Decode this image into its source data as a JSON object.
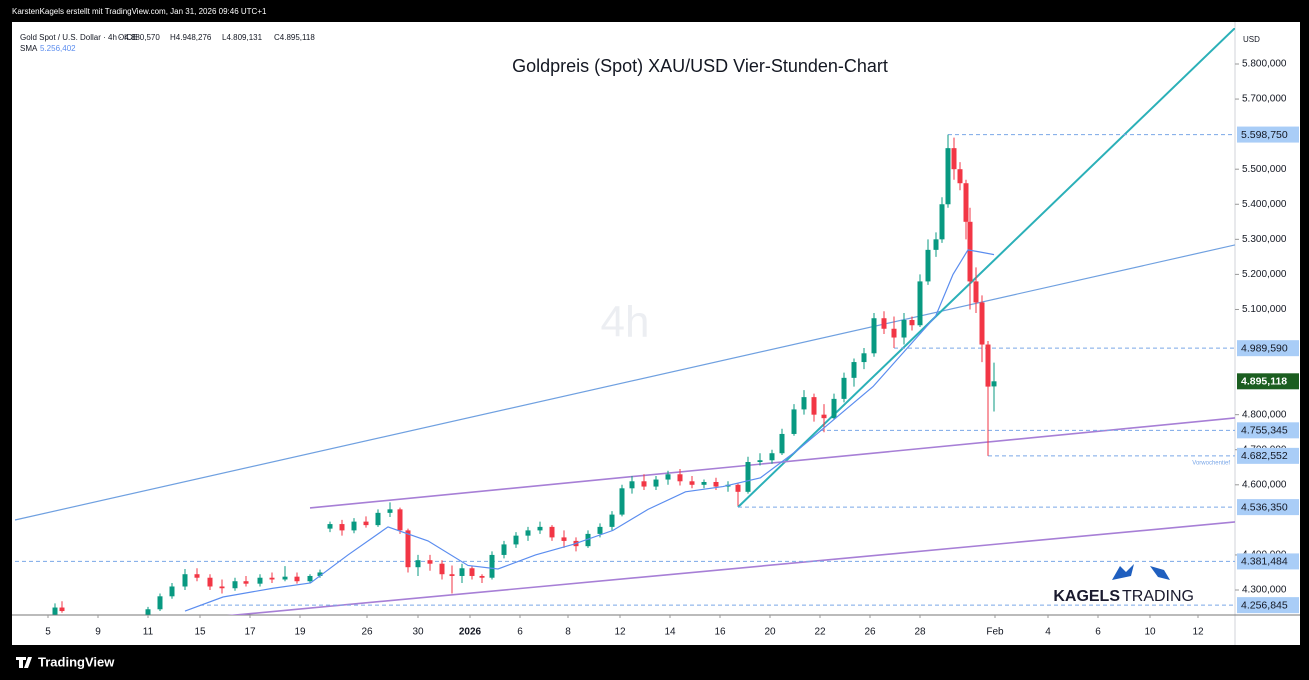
{
  "chart_data": {
    "type": "candlestick",
    "credit": "KarstenKagels erstellt mit TradingView.com, Jan 31, 2026 09:46 UTC+1",
    "symbol": "Gold Spot / U.S. Dollar · 4h · ICE",
    "ohlc_labels": [
      "O4.880,570",
      "H4.948,276",
      "L4.809,131",
      "C4.895,118"
    ],
    "title": "Goldpreis (Spot) XAU/USD Vier-Stunden-Chart",
    "watermark": "4h",
    "y_axis_label": "USD",
    "brand": [
      "KAGELS",
      "TRADING"
    ],
    "footer": "TradingView",
    "up_color": "#089981",
    "down_color": "#f23645",
    "grid": false,
    "x": [
      0.28,
      0.56,
      4.0,
      4.48,
      4.96,
      5.48,
      5.96,
      6.48,
      6.96,
      7.48,
      7.92,
      8.48,
      8.96,
      9.48,
      9.96,
      10.48,
      10.88,
      11.28,
      11.76,
      12.24,
      12.72,
      13.2,
      13.68,
      14.08,
      14.4,
      14.8,
      15.28,
      15.76,
      16.16,
      16.56,
      16.96,
      17.36,
      17.76,
      18.24,
      18.72,
      19.2,
      19.68,
      20.16,
      20.64,
      21.12,
      21.6,
      22.08,
      22.56,
      22.96,
      23.36,
      23.84,
      24.32,
      24.8,
      25.28,
      25.76,
      26.24,
      26.72,
      27.2,
      27.6,
      28.0,
      28.48,
      28.96,
      29.36,
      29.84,
      30.24,
      30.64,
      31.04,
      31.44,
      31.84,
      32.24,
      32.64,
      33.04,
      33.44,
      33.84,
      34.24,
      34.56,
      34.88,
      35.2,
      35.52,
      35.76,
      36.0,
      36.24,
      36.48,
      36.72,
      36.88,
      37.12,
      37.36,
      37.6,
      37.84
    ],
    "open": [
      4230,
      4250,
      4230,
      4245,
      4282,
      4310,
      4345,
      4335,
      4310,
      4305,
      4325,
      4318,
      4335,
      4330,
      4338,
      4325,
      4340,
      4475,
      4488,
      4470,
      4495,
      4485,
      4520,
      4530,
      4470,
      4365,
      4385,
      4375,
      4345,
      4340,
      4362,
      4340,
      4335,
      4400,
      4430,
      4455,
      4470,
      4480,
      4450,
      4440,
      4425,
      4460,
      4480,
      4515,
      4590,
      4610,
      4595,
      4615,
      4630,
      4610,
      4600,
      4608,
      4595,
      4600,
      4580,
      4665,
      4670,
      4690,
      4745,
      4815,
      4850,
      4800,
      4790,
      4845,
      4905,
      4950,
      4975,
      5075,
      5045,
      5020,
      5070,
      5055,
      5180,
      5270,
      5300,
      5400,
      5560,
      5500,
      5460,
      5350,
      5180,
      5120,
      5000,
      4880.57
    ],
    "high": [
      4262,
      4268,
      4252,
      4290,
      4320,
      4360,
      4362,
      4345,
      4330,
      4335,
      4340,
      4345,
      4350,
      4368,
      4350,
      4345,
      4358,
      4495,
      4500,
      4505,
      4510,
      4530,
      4550,
      4535,
      4475,
      4400,
      4400,
      4385,
      4370,
      4375,
      4370,
      4345,
      4410,
      4440,
      4465,
      4480,
      4495,
      4485,
      4470,
      4450,
      4470,
      4490,
      4525,
      4600,
      4625,
      4630,
      4625,
      4640,
      4645,
      4625,
      4615,
      4620,
      4610,
      4605,
      4680,
      4690,
      4700,
      4760,
      4830,
      4870,
      4860,
      4830,
      4860,
      4920,
      4960,
      4990,
      5090,
      5095,
      5080,
      5090,
      5080,
      5200,
      5300,
      5320,
      5420,
      5598.75,
      5590,
      5520,
      5470,
      5390,
      5220,
      5140,
      5010,
      4948.276
    ],
    "low": [
      4225,
      4235,
      4228,
      4240,
      4275,
      4300,
      4325,
      4300,
      4290,
      4298,
      4310,
      4310,
      4320,
      4325,
      4318,
      4320,
      4335,
      4465,
      4455,
      4462,
      4478,
      4480,
      4508,
      4460,
      4350,
      4340,
      4355,
      4330,
      4290,
      4320,
      4330,
      4320,
      4330,
      4390,
      4420,
      4440,
      4460,
      4440,
      4420,
      4410,
      4420,
      4450,
      4470,
      4510,
      4575,
      4585,
      4585,
      4600,
      4598,
      4590,
      4590,
      4585,
      4580,
      4540,
      4575,
      4655,
      4660,
      4685,
      4740,
      4800,
      4780,
      4750,
      4785,
      4835,
      4880,
      4930,
      4965,
      5030,
      4990,
      5000,
      5040,
      5050,
      5170,
      5250,
      5290,
      5390,
      5470,
      5440,
      5300,
      5100,
      5090,
      4950,
      4682.552,
      4809.131
    ],
    "close": [
      4250,
      4240,
      4245,
      4282,
      4310,
      4345,
      4335,
      4310,
      4305,
      4325,
      4318,
      4335,
      4330,
      4338,
      4325,
      4340,
      4350,
      4488,
      4470,
      4495,
      4485,
      4520,
      4530,
      4470,
      4365,
      4385,
      4375,
      4345,
      4340,
      4362,
      4340,
      4335,
      4400,
      4430,
      4455,
      4470,
      4480,
      4450,
      4440,
      4425,
      4460,
      4480,
      4515,
      4590,
      4610,
      4595,
      4615,
      4630,
      4610,
      4600,
      4608,
      4595,
      4600,
      4580,
      4665,
      4670,
      4690,
      4745,
      4815,
      4850,
      4800,
      4790,
      4845,
      4905,
      4950,
      4975,
      5075,
      5045,
      5020,
      5070,
      5055,
      5180,
      5270,
      5300,
      5400,
      5560,
      5500,
      5460,
      5350,
      5180,
      5120,
      5000,
      4880,
      4895.118
    ],
    "sma": {
      "name": "SMA",
      "value_label": "5.256,402",
      "color": "#5b8def",
      "x": [
        5.48,
        7.0,
        9.0,
        10.5,
        12.0,
        13.6,
        15.2,
        16.8,
        18.0,
        19.5,
        21.0,
        22.6,
        24.0,
        25.5,
        27.0,
        28.5,
        30.0,
        31.5,
        33.0,
        34.5,
        35.5,
        36.2,
        36.8,
        37.2,
        37.84
      ],
      "values": [
        4240,
        4280,
        4305,
        4320,
        4400,
        4480,
        4440,
        4370,
        4360,
        4400,
        4430,
        4470,
        4530,
        4580,
        4595,
        4620,
        4700,
        4790,
        4880,
        5000,
        5080,
        5200,
        5270,
        5265,
        5256.402
      ]
    },
    "drawings": [
      {
        "color": "#6fa0e0",
        "width": 1.2,
        "x": [
          -1.32,
          47.48
        ],
        "y": [
          4499.6,
          5284
        ]
      },
      {
        "color": "#2bb0b8",
        "width": 2,
        "x": [
          27.6,
          47.48
        ],
        "y": [
          4536.35,
          5902.6
        ]
      },
      {
        "color": "#a77fd6",
        "width": 1.6,
        "x": [
          10.48,
          47.48
        ],
        "y": [
          4534,
          4790.6
        ]
      },
      {
        "color": "#a77fd6",
        "width": 1.6,
        "x": [
          5.28,
          47.48
        ],
        "y": [
          4214,
          4494
        ]
      }
    ],
    "levels": [
      {
        "value": 5598.75,
        "label": "5.598,750",
        "from": 36.0
      },
      {
        "value": 4989.59,
        "label": "4.989,590",
        "from": 33.84
      },
      {
        "value": 4755.345,
        "label": "4.755,345",
        "from": 30.88
      },
      {
        "value": 4682.552,
        "label": "4.682,552",
        "from": 37.6,
        "note": "Vorwochentief"
      },
      {
        "value": 4536.35,
        "label": "4.536,350",
        "from": 27.6
      },
      {
        "value": 4381.484,
        "label": "4.381,484",
        "from": -1.32
      },
      {
        "value": 4256.845,
        "label": "4.256,845",
        "from": 6.08
      }
    ],
    "current_price": {
      "value": 4895.118,
      "label": "4.895,118",
      "color": "#1b5e20"
    },
    "xlim": [
      -1.32,
      47.48
    ],
    "ylim": [
      4228.7,
      5902.65
    ],
    "xticks": [
      {
        "value": 0,
        "label": "5"
      },
      {
        "value": 2,
        "label": "9"
      },
      {
        "value": 4,
        "label": "11"
      },
      {
        "value": 6.08,
        "label": "15"
      },
      {
        "value": 8.08,
        "label": "17"
      },
      {
        "value": 10.08,
        "label": "19"
      },
      {
        "value": 12.76,
        "label": "26"
      },
      {
        "value": 14.8,
        "label": "30"
      },
      {
        "value": 16.88,
        "label": "2026",
        "bold": true
      },
      {
        "value": 18.88,
        "label": "6"
      },
      {
        "value": 20.8,
        "label": "8"
      },
      {
        "value": 22.88,
        "label": "12"
      },
      {
        "value": 24.88,
        "label": "14"
      },
      {
        "value": 26.88,
        "label": "16"
      },
      {
        "value": 28.88,
        "label": "20"
      },
      {
        "value": 30.88,
        "label": "22"
      },
      {
        "value": 32.88,
        "label": "26"
      },
      {
        "value": 34.88,
        "label": "28"
      },
      {
        "value": 37.88,
        "label": "Feb"
      },
      {
        "value": 40,
        "label": "4"
      },
      {
        "value": 42,
        "label": "6"
      },
      {
        "value": 44.08,
        "label": "10"
      },
      {
        "value": 46,
        "label": "12"
      }
    ],
    "yticks": [
      {
        "value": 4300,
        "label": "4.300,000"
      },
      {
        "value": 4400,
        "label": "4.400,000"
      },
      {
        "value": 4600,
        "label": "4.600,000"
      },
      {
        "value": 4700,
        "label": "4.700,000"
      },
      {
        "value": 4800,
        "label": "4.800,000"
      },
      {
        "value": 5100,
        "label": "5.100,000"
      },
      {
        "value": 5200,
        "label": "5.200,000"
      },
      {
        "value": 5300,
        "label": "5.300,000"
      },
      {
        "value": 5400,
        "label": "5.400,000"
      },
      {
        "value": 5500,
        "label": "5.500,000"
      },
      {
        "value": 5700,
        "label": "5.700,000"
      },
      {
        "value": 5800,
        "label": "5.800,000"
      }
    ]
  }
}
